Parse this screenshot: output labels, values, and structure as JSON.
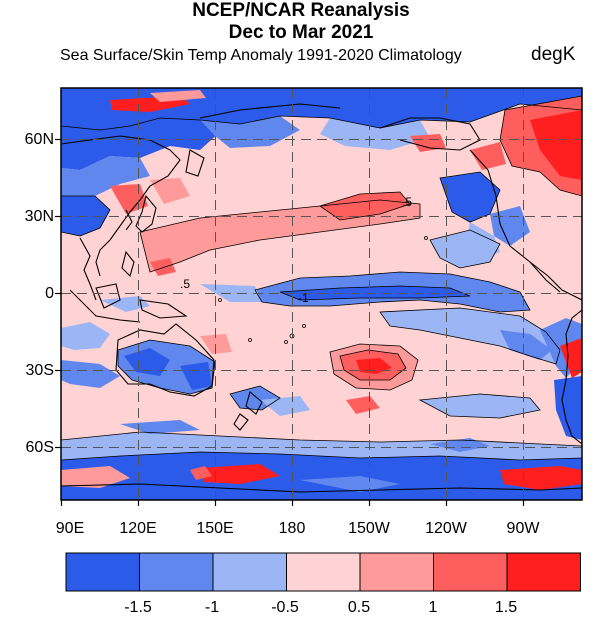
{
  "title": "NCEP/NCAR Reanalysis",
  "period": "Dec to Mar 2021",
  "subtitle": "Sea Surface/Skin Temp Anomaly  1991-2020 Climatology",
  "units": "degK",
  "lat_labels": [
    "60N",
    "30N",
    "0",
    "30S",
    "60S"
  ],
  "lon_labels": [
    "90E",
    "120E",
    "150E",
    "180",
    "150W",
    "120W",
    "90W"
  ],
  "contour_labels": [
    ".5",
    ".5",
    "-1"
  ],
  "colorbar": {
    "levels": [
      "-1.5",
      "-1",
      "-0.5",
      "0.5",
      "1",
      "1.5"
    ],
    "colors": [
      "#2b5be8",
      "#5f87ee",
      "#9cb5f5",
      "#ffd3d3",
      "#ff9a9a",
      "#ff5e5e",
      "#ff1f1f"
    ]
  }
}
